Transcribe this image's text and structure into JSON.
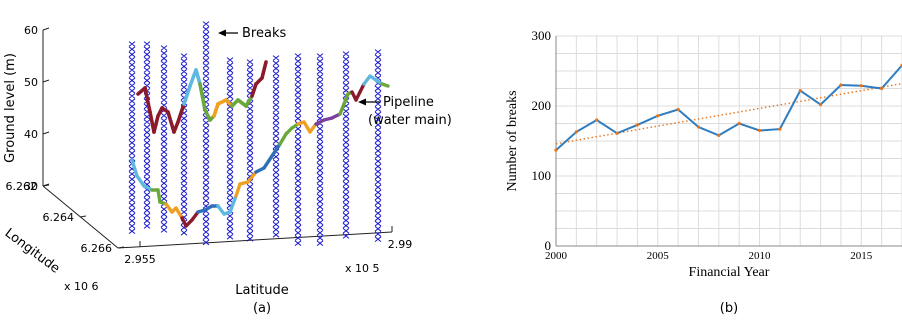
{
  "chart_data": [
    {
      "type": "line",
      "panel_label": "(a)",
      "xlabel": "Latitude",
      "x_multiplier": "x 10 5",
      "ylabel": "Longitude",
      "y_multiplier": "x 10 6",
      "zlabel": "Ground level (m)",
      "x_ticks": [
        "2.955",
        "2.99"
      ],
      "y_ticks": [
        "6.262",
        "6.264",
        "6.266"
      ],
      "z_ticks": [
        "30",
        "40",
        "50",
        "60"
      ],
      "annotations": {
        "breaks": "Breaks",
        "pipeline_line1": "Pipeline",
        "pipeline_line2": "(water main)"
      },
      "colors": {
        "breaks": "#1a1acc",
        "pipe_segments": [
          "#8b1a2b",
          "#5fb8e0",
          "#6aa83a",
          "#f0a020",
          "#2f6fb8",
          "#7b3f9e"
        ]
      }
    },
    {
      "type": "line",
      "panel_label": "(b)",
      "xlabel": "Financial Year",
      "ylabel": "Number of breaks",
      "xlim": [
        2000,
        2017
      ],
      "ylim": [
        0,
        300
      ],
      "x_ticks": [
        2000,
        2005,
        2010,
        2015
      ],
      "y_ticks": [
        0,
        100,
        200,
        300
      ],
      "grid": true,
      "x": [
        2000,
        2001,
        2002,
        2003,
        2004,
        2005,
        2006,
        2007,
        2008,
        2009,
        2010,
        2011,
        2012,
        2013,
        2014,
        2015,
        2016,
        2017
      ],
      "series": [
        {
          "values": [
            137,
            163,
            180,
            161,
            173,
            186,
            195,
            170,
            158,
            175,
            165,
            167,
            222,
            202,
            230,
            229,
            225,
            258
          ],
          "color": "#2f7cbf"
        }
      ],
      "trend": {
        "start": 146,
        "end": 232,
        "color": "#e8741a",
        "style": "dotted"
      }
    }
  ]
}
